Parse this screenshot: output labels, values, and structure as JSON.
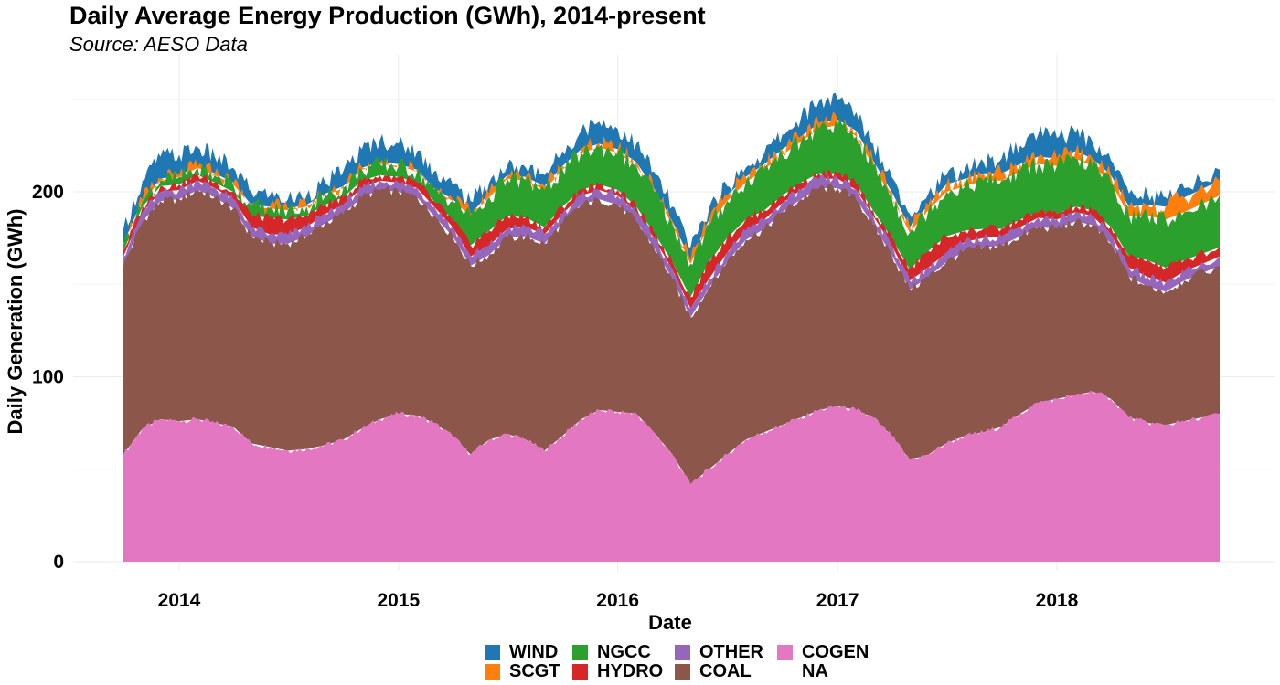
{
  "chart_data": {
    "type": "area",
    "title": "Daily Average Energy Production (GWh), 2014-present",
    "subtitle": "Source: AESO Data",
    "xlabel": "Date",
    "ylabel": "Daily Generation (GWh)",
    "x_ticks": [
      "2014",
      "2015",
      "2016",
      "2017",
      "2018"
    ],
    "y_ticks": [
      "0",
      "100",
      "200"
    ],
    "xlim": [
      "2013-09-30",
      "2018-10-01"
    ],
    "ylim": [
      0,
      260
    ],
    "grid": true,
    "legend_position": "bottom",
    "stack_order": [
      "COGEN",
      "COAL",
      "OTHER",
      "HYDRO",
      "NGCC",
      "SCGT",
      "WIND"
    ],
    "legend": [
      {
        "name": "WIND",
        "color": "#1f77b4"
      },
      {
        "name": "NGCC",
        "color": "#2ca02c"
      },
      {
        "name": "OTHER",
        "color": "#9467bd"
      },
      {
        "name": "COGEN",
        "color": "#e377c2"
      },
      {
        "name": "SCGT",
        "color": "#ff7f0e"
      },
      {
        "name": "HYDRO",
        "color": "#d62728"
      },
      {
        "name": "COAL",
        "color": "#8c564b"
      },
      {
        "name": "NA",
        "color": ""
      }
    ],
    "x": [
      "2013-10-01",
      "2013-11-01",
      "2013-12-01",
      "2014-01-01",
      "2014-02-01",
      "2014-03-01",
      "2014-04-01",
      "2014-05-01",
      "2014-06-01",
      "2014-07-01",
      "2014-08-01",
      "2014-09-01",
      "2014-10-01",
      "2014-11-01",
      "2014-12-01",
      "2015-01-01",
      "2015-02-01",
      "2015-03-01",
      "2015-04-01",
      "2015-05-01",
      "2015-06-01",
      "2015-07-01",
      "2015-08-01",
      "2015-09-01",
      "2015-10-01",
      "2015-11-01",
      "2015-12-01",
      "2016-01-01",
      "2016-02-01",
      "2016-03-01",
      "2016-04-01",
      "2016-05-01",
      "2016-06-01",
      "2016-07-01",
      "2016-08-01",
      "2016-09-01",
      "2016-10-01",
      "2016-11-01",
      "2016-12-01",
      "2017-01-01",
      "2017-02-01",
      "2017-03-01",
      "2017-04-01",
      "2017-05-01",
      "2017-06-01",
      "2017-07-01",
      "2017-08-01",
      "2017-09-01",
      "2017-10-01",
      "2017-11-01",
      "2017-12-01",
      "2018-01-01",
      "2018-02-01",
      "2018-03-01",
      "2018-04-01",
      "2018-05-01",
      "2018-06-01",
      "2018-07-01",
      "2018-08-01",
      "2018-09-01"
    ],
    "series": [
      {
        "name": "COGEN",
        "values": [
          58,
          72,
          77,
          76,
          77,
          75,
          73,
          64,
          62,
          60,
          61,
          63,
          66,
          72,
          77,
          80,
          79,
          75,
          68,
          58,
          66,
          69,
          66,
          60,
          68,
          77,
          82,
          81,
          80,
          70,
          58,
          42,
          50,
          58,
          66,
          70,
          74,
          78,
          82,
          84,
          82,
          78,
          68,
          55,
          58,
          64,
          68,
          70,
          73,
          80,
          86,
          88,
          90,
          92,
          88,
          78,
          75,
          74,
          76,
          80
        ]
      },
      {
        "name": "COAL",
        "values": [
          102,
          112,
          118,
          120,
          124,
          122,
          118,
          112,
          110,
          112,
          115,
          120,
          122,
          125,
          124,
          120,
          118,
          112,
          108,
          102,
          100,
          106,
          110,
          112,
          115,
          116,
          114,
          112,
          104,
          100,
          95,
          90,
          98,
          104,
          108,
          110,
          115,
          118,
          120,
          118,
          114,
          104,
          98,
          92,
          96,
          98,
          100,
          100,
          98,
          96,
          95,
          92,
          94,
          90,
          84,
          76,
          74,
          72,
          76,
          80
        ]
      },
      {
        "name": "OTHER",
        "values": [
          5,
          5,
          5,
          5,
          5,
          5,
          5,
          5,
          5,
          5,
          5,
          5,
          5,
          5,
          5,
          5,
          5,
          5,
          5,
          5,
          5,
          5,
          5,
          5,
          5,
          5,
          5,
          5,
          5,
          5,
          5,
          5,
          5,
          5,
          5,
          5,
          5,
          5,
          5,
          5,
          5,
          5,
          5,
          5,
          5,
          5,
          5,
          5,
          5,
          5,
          5,
          5,
          5,
          5,
          5,
          5,
          5,
          5,
          5,
          5
        ]
      },
      {
        "name": "HYDRO",
        "values": [
          3,
          3,
          3,
          3,
          3,
          3,
          4,
          6,
          9,
          8,
          6,
          5,
          4,
          4,
          3,
          3,
          3,
          3,
          4,
          6,
          8,
          7,
          5,
          4,
          4,
          3,
          3,
          3,
          3,
          3,
          4,
          6,
          9,
          8,
          6,
          5,
          4,
          4,
          3,
          3,
          3,
          3,
          4,
          6,
          9,
          9,
          6,
          5,
          4,
          4,
          3,
          3,
          3,
          3,
          4,
          6,
          9,
          8,
          6,
          5
        ]
      },
      {
        "name": "NGCC",
        "values": [
          3,
          3,
          3,
          4,
          4,
          4,
          4,
          5,
          5,
          5,
          5,
          5,
          5,
          6,
          6,
          6,
          6,
          6,
          10,
          16,
          18,
          20,
          20,
          20,
          20,
          20,
          20,
          20,
          22,
          22,
          20,
          18,
          20,
          20,
          20,
          22,
          22,
          22,
          24,
          26,
          26,
          24,
          22,
          20,
          22,
          24,
          24,
          26,
          26,
          26,
          26,
          26,
          26,
          24,
          24,
          22,
          24,
          26,
          26,
          28
        ]
      },
      {
        "name": "SCGT",
        "values": [
          1,
          1,
          1,
          1,
          1,
          1,
          1,
          1,
          1,
          1,
          1,
          1,
          1,
          1,
          1,
          1,
          1,
          1,
          1,
          1,
          2,
          2,
          2,
          2,
          2,
          2,
          2,
          2,
          2,
          2,
          2,
          2,
          3,
          3,
          3,
          3,
          3,
          3,
          3,
          3,
          3,
          3,
          3,
          3,
          3,
          4,
          4,
          4,
          4,
          4,
          4,
          4,
          4,
          4,
          4,
          5,
          6,
          7,
          8,
          8
        ]
      },
      {
        "name": "WIND",
        "values": [
          8,
          10,
          12,
          11,
          10,
          9,
          8,
          7,
          6,
          5,
          5,
          6,
          8,
          10,
          12,
          11,
          10,
          9,
          8,
          7,
          6,
          5,
          5,
          6,
          8,
          10,
          12,
          11,
          10,
          9,
          8,
          7,
          6,
          5,
          5,
          6,
          8,
          10,
          12,
          11,
          10,
          9,
          8,
          7,
          6,
          5,
          5,
          6,
          8,
          10,
          12,
          11,
          10,
          9,
          8,
          7,
          6,
          5,
          5,
          6
        ]
      }
    ]
  }
}
